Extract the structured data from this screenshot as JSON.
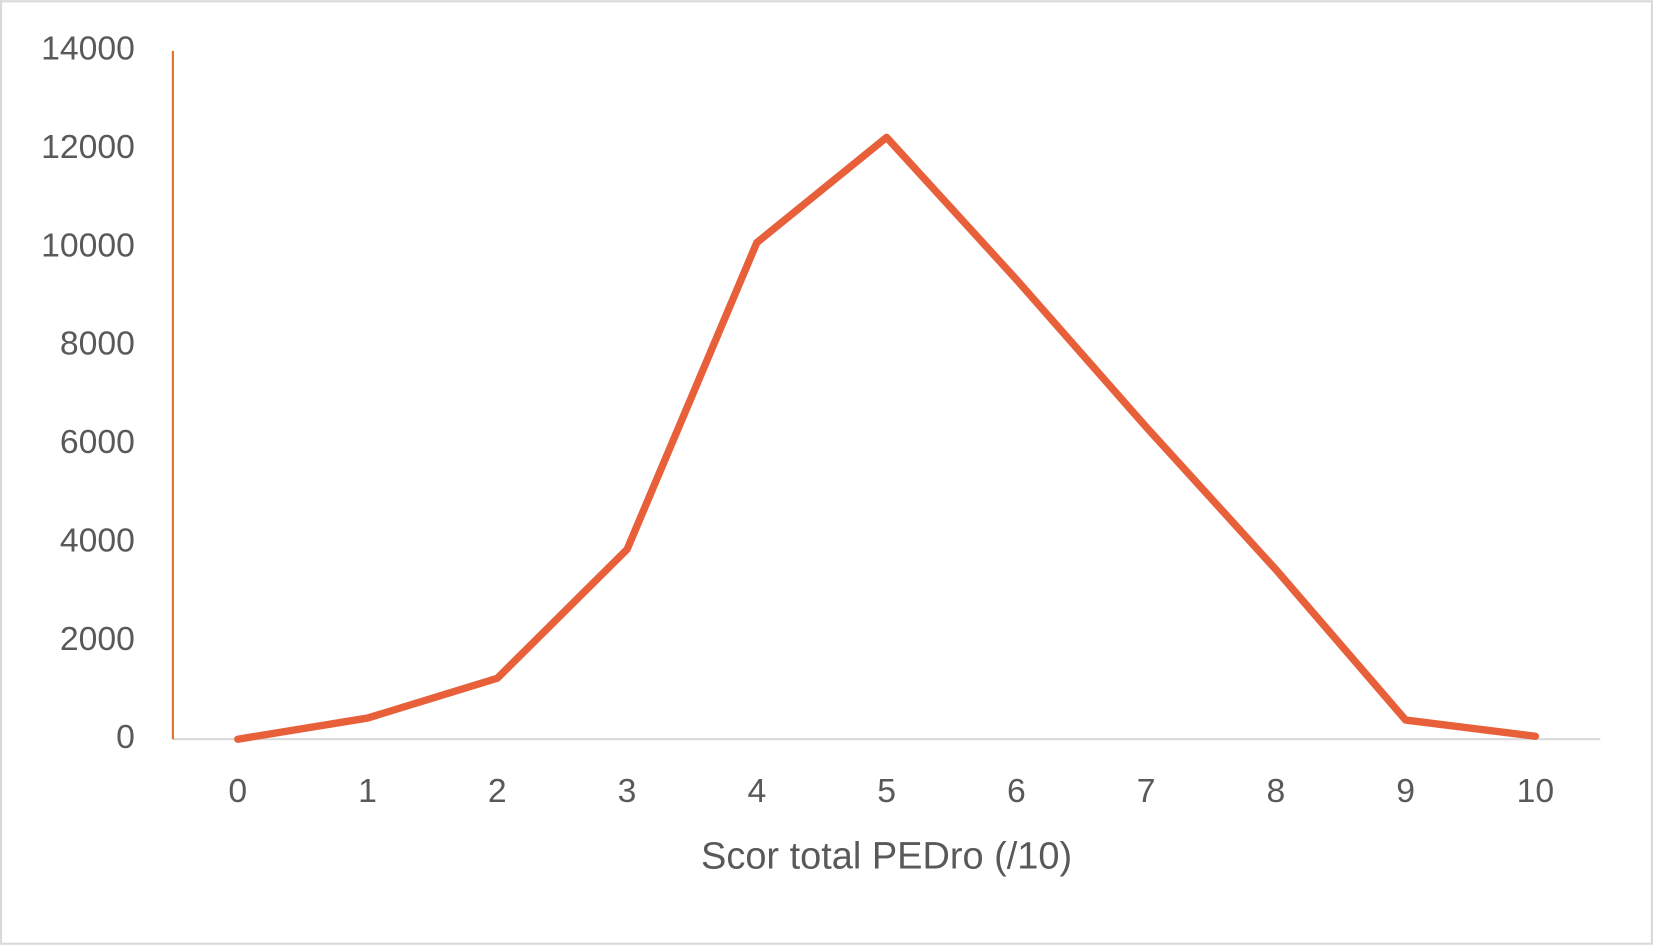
{
  "chart_data": {
    "type": "line",
    "x_label": "Scor total PEDro (/10)",
    "categories": [
      "0",
      "1",
      "2",
      "3",
      "4",
      "5",
      "6",
      "7",
      "8",
      "9",
      "10"
    ],
    "series": [
      {
        "name": "Scor total PEDro",
        "color": "#e8603a",
        "values": [
          0,
          430,
          1240,
          3860,
          10100,
          12240,
          9350,
          6350,
          3450,
          390,
          60
        ]
      }
    ],
    "ylim": [
      0,
      14000
    ],
    "yticks": [
      0,
      2000,
      4000,
      6000,
      8000,
      10000,
      12000,
      14000
    ],
    "y_axis_color": "#e07020",
    "grid": false
  }
}
